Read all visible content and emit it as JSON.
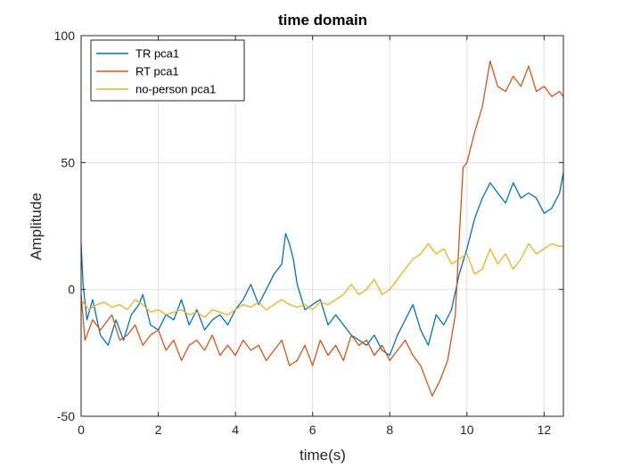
{
  "chart_data": {
    "type": "line",
    "title": "time domain",
    "xlabel": "time(s)",
    "ylabel": "Amplitude",
    "xlim": [
      0,
      12.5
    ],
    "ylim": [
      -50,
      100
    ],
    "xticks": [
      0,
      2,
      4,
      6,
      8,
      10,
      12
    ],
    "yticks": [
      -50,
      0,
      50,
      100
    ],
    "xtick_labels": [
      "0",
      "2",
      "4",
      "6",
      "8",
      "10",
      "12"
    ],
    "ytick_labels": [
      "-50",
      "0",
      "50",
      "100"
    ],
    "grid": true,
    "legend_position": "top-left",
    "series": [
      {
        "name": "TR pca1",
        "color": "#0072BD",
        "x": [
          0,
          0.05,
          0.15,
          0.3,
          0.5,
          0.7,
          0.9,
          1.1,
          1.3,
          1.5,
          1.6,
          1.8,
          2.0,
          2.2,
          2.4,
          2.6,
          2.8,
          3.0,
          3.2,
          3.4,
          3.6,
          3.8,
          4.0,
          4.2,
          4.4,
          4.6,
          4.8,
          5.0,
          5.2,
          5.3,
          5.4,
          5.5,
          5.6,
          5.8,
          6.0,
          6.2,
          6.4,
          6.6,
          6.8,
          7.0,
          7.2,
          7.4,
          7.6,
          7.8,
          8.0,
          8.2,
          8.4,
          8.6,
          8.8,
          9.0,
          9.2,
          9.4,
          9.6,
          9.8,
          10.0,
          10.2,
          10.4,
          10.6,
          10.8,
          11.0,
          11.2,
          11.4,
          11.6,
          11.8,
          12.0,
          12.2,
          12.4,
          12.5
        ],
        "values": [
          18,
          2,
          -12,
          -4,
          -18,
          -22,
          -12,
          -20,
          -10,
          -6,
          -2,
          -14,
          -16,
          -10,
          -12,
          -4,
          -14,
          -8,
          -16,
          -12,
          -10,
          -14,
          -8,
          -4,
          2,
          -6,
          0,
          6,
          10,
          22,
          18,
          12,
          2,
          -8,
          -6,
          -4,
          -14,
          -10,
          -14,
          -18,
          -20,
          -22,
          -18,
          -24,
          -26,
          -18,
          -12,
          -6,
          -16,
          -22,
          -10,
          -14,
          -8,
          6,
          16,
          28,
          36,
          42,
          38,
          34,
          42,
          36,
          38,
          36,
          30,
          32,
          38,
          46
        ]
      },
      {
        "name": "RT pca1",
        "color": "#D95319",
        "x": [
          0,
          0.1,
          0.3,
          0.5,
          0.8,
          1.0,
          1.2,
          1.4,
          1.6,
          1.8,
          2.0,
          2.2,
          2.4,
          2.6,
          2.8,
          3.0,
          3.2,
          3.4,
          3.6,
          3.8,
          4.0,
          4.2,
          4.4,
          4.6,
          4.8,
          5.0,
          5.2,
          5.4,
          5.6,
          5.8,
          6.0,
          6.2,
          6.4,
          6.6,
          6.8,
          7.0,
          7.2,
          7.4,
          7.6,
          7.8,
          8.0,
          8.2,
          8.4,
          8.6,
          8.8,
          9.0,
          9.1,
          9.3,
          9.5,
          9.7,
          9.8,
          9.9,
          10.0,
          10.2,
          10.4,
          10.6,
          10.8,
          11.0,
          11.2,
          11.4,
          11.6,
          11.8,
          12.0,
          12.2,
          12.4,
          12.5
        ],
        "values": [
          -2,
          -20,
          -12,
          -16,
          -10,
          -20,
          -18,
          -14,
          -22,
          -18,
          -16,
          -24,
          -20,
          -28,
          -22,
          -20,
          -24,
          -18,
          -26,
          -22,
          -26,
          -20,
          -24,
          -22,
          -28,
          -24,
          -20,
          -30,
          -28,
          -22,
          -30,
          -20,
          -26,
          -22,
          -28,
          -18,
          -22,
          -20,
          -26,
          -22,
          -28,
          -24,
          -20,
          -26,
          -30,
          -38,
          -42,
          -36,
          -28,
          -10,
          20,
          48,
          50,
          62,
          72,
          90,
          80,
          78,
          84,
          80,
          88,
          78,
          80,
          76,
          78,
          76
        ]
      },
      {
        "name": "no-person pca1",
        "color": "#EDB120",
        "x": [
          0,
          0.2,
          0.4,
          0.6,
          0.8,
          1.0,
          1.2,
          1.4,
          1.6,
          1.8,
          2.0,
          2.2,
          2.4,
          2.6,
          2.8,
          3.0,
          3.2,
          3.4,
          3.6,
          3.8,
          4.0,
          4.2,
          4.4,
          4.6,
          4.8,
          5.0,
          5.2,
          5.4,
          5.6,
          5.8,
          6.0,
          6.2,
          6.4,
          6.6,
          6.8,
          7.0,
          7.2,
          7.4,
          7.6,
          7.8,
          8.0,
          8.2,
          8.4,
          8.6,
          8.8,
          9.0,
          9.2,
          9.4,
          9.6,
          9.8,
          10.0,
          10.2,
          10.4,
          10.6,
          10.8,
          11.0,
          11.2,
          11.4,
          11.6,
          11.8,
          12.0,
          12.2,
          12.4,
          12.5
        ],
        "values": [
          -4,
          -8,
          -6,
          -5,
          -7,
          -6,
          -8,
          -4,
          -6,
          -9,
          -8,
          -10,
          -9,
          -8,
          -10,
          -9,
          -11,
          -8,
          -9,
          -10,
          -8,
          -6,
          -7,
          -5,
          -8,
          -6,
          -4,
          -6,
          -7,
          -6,
          -8,
          -5,
          -6,
          -4,
          -2,
          2,
          -2,
          0,
          4,
          -2,
          0,
          4,
          8,
          12,
          14,
          18,
          14,
          16,
          10,
          12,
          14,
          6,
          8,
          16,
          10,
          14,
          8,
          12,
          18,
          14,
          16,
          18,
          17,
          17
        ]
      }
    ]
  }
}
